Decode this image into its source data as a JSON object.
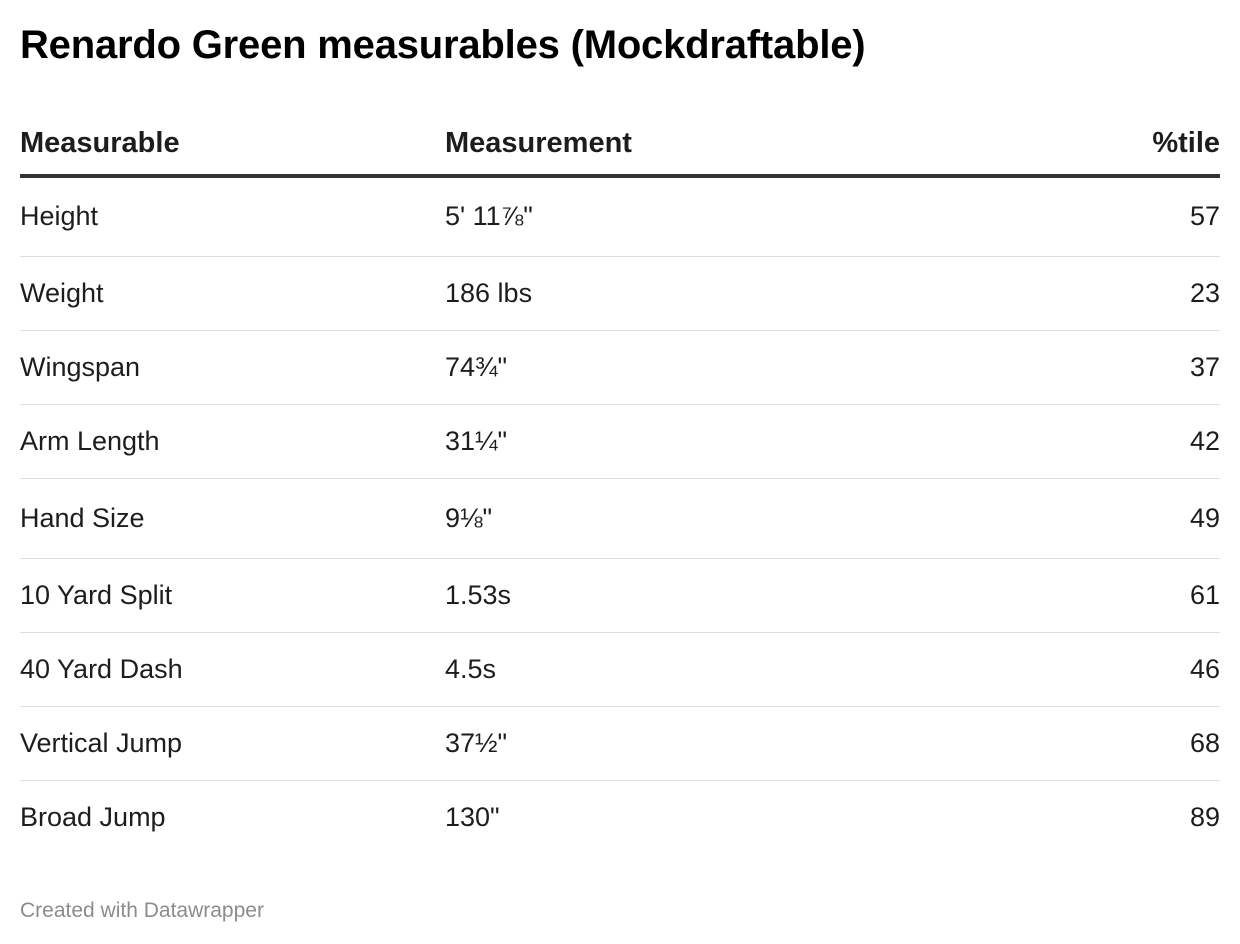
{
  "title": "Renardo Green measurables (Mockdraftable)",
  "table": {
    "columns": [
      "Measurable",
      "Measurement",
      "%tile"
    ],
    "rows": [
      [
        "Height",
        "5' 11⅞\"",
        "57"
      ],
      [
        "Weight",
        "186 lbs",
        "23"
      ],
      [
        "Wingspan",
        "74¾\"",
        "37"
      ],
      [
        "Arm Length",
        "31¼\"",
        "42"
      ],
      [
        "Hand Size",
        "9⅛\"",
        "49"
      ],
      [
        "10 Yard Split",
        "1.53s",
        "61"
      ],
      [
        "40 Yard Dash",
        "4.5s",
        "46"
      ],
      [
        "Vertical Jump",
        "37½\"",
        "68"
      ],
      [
        "Broad Jump",
        "130\"",
        "89"
      ]
    ]
  },
  "footer": "Created with Datawrapper"
}
